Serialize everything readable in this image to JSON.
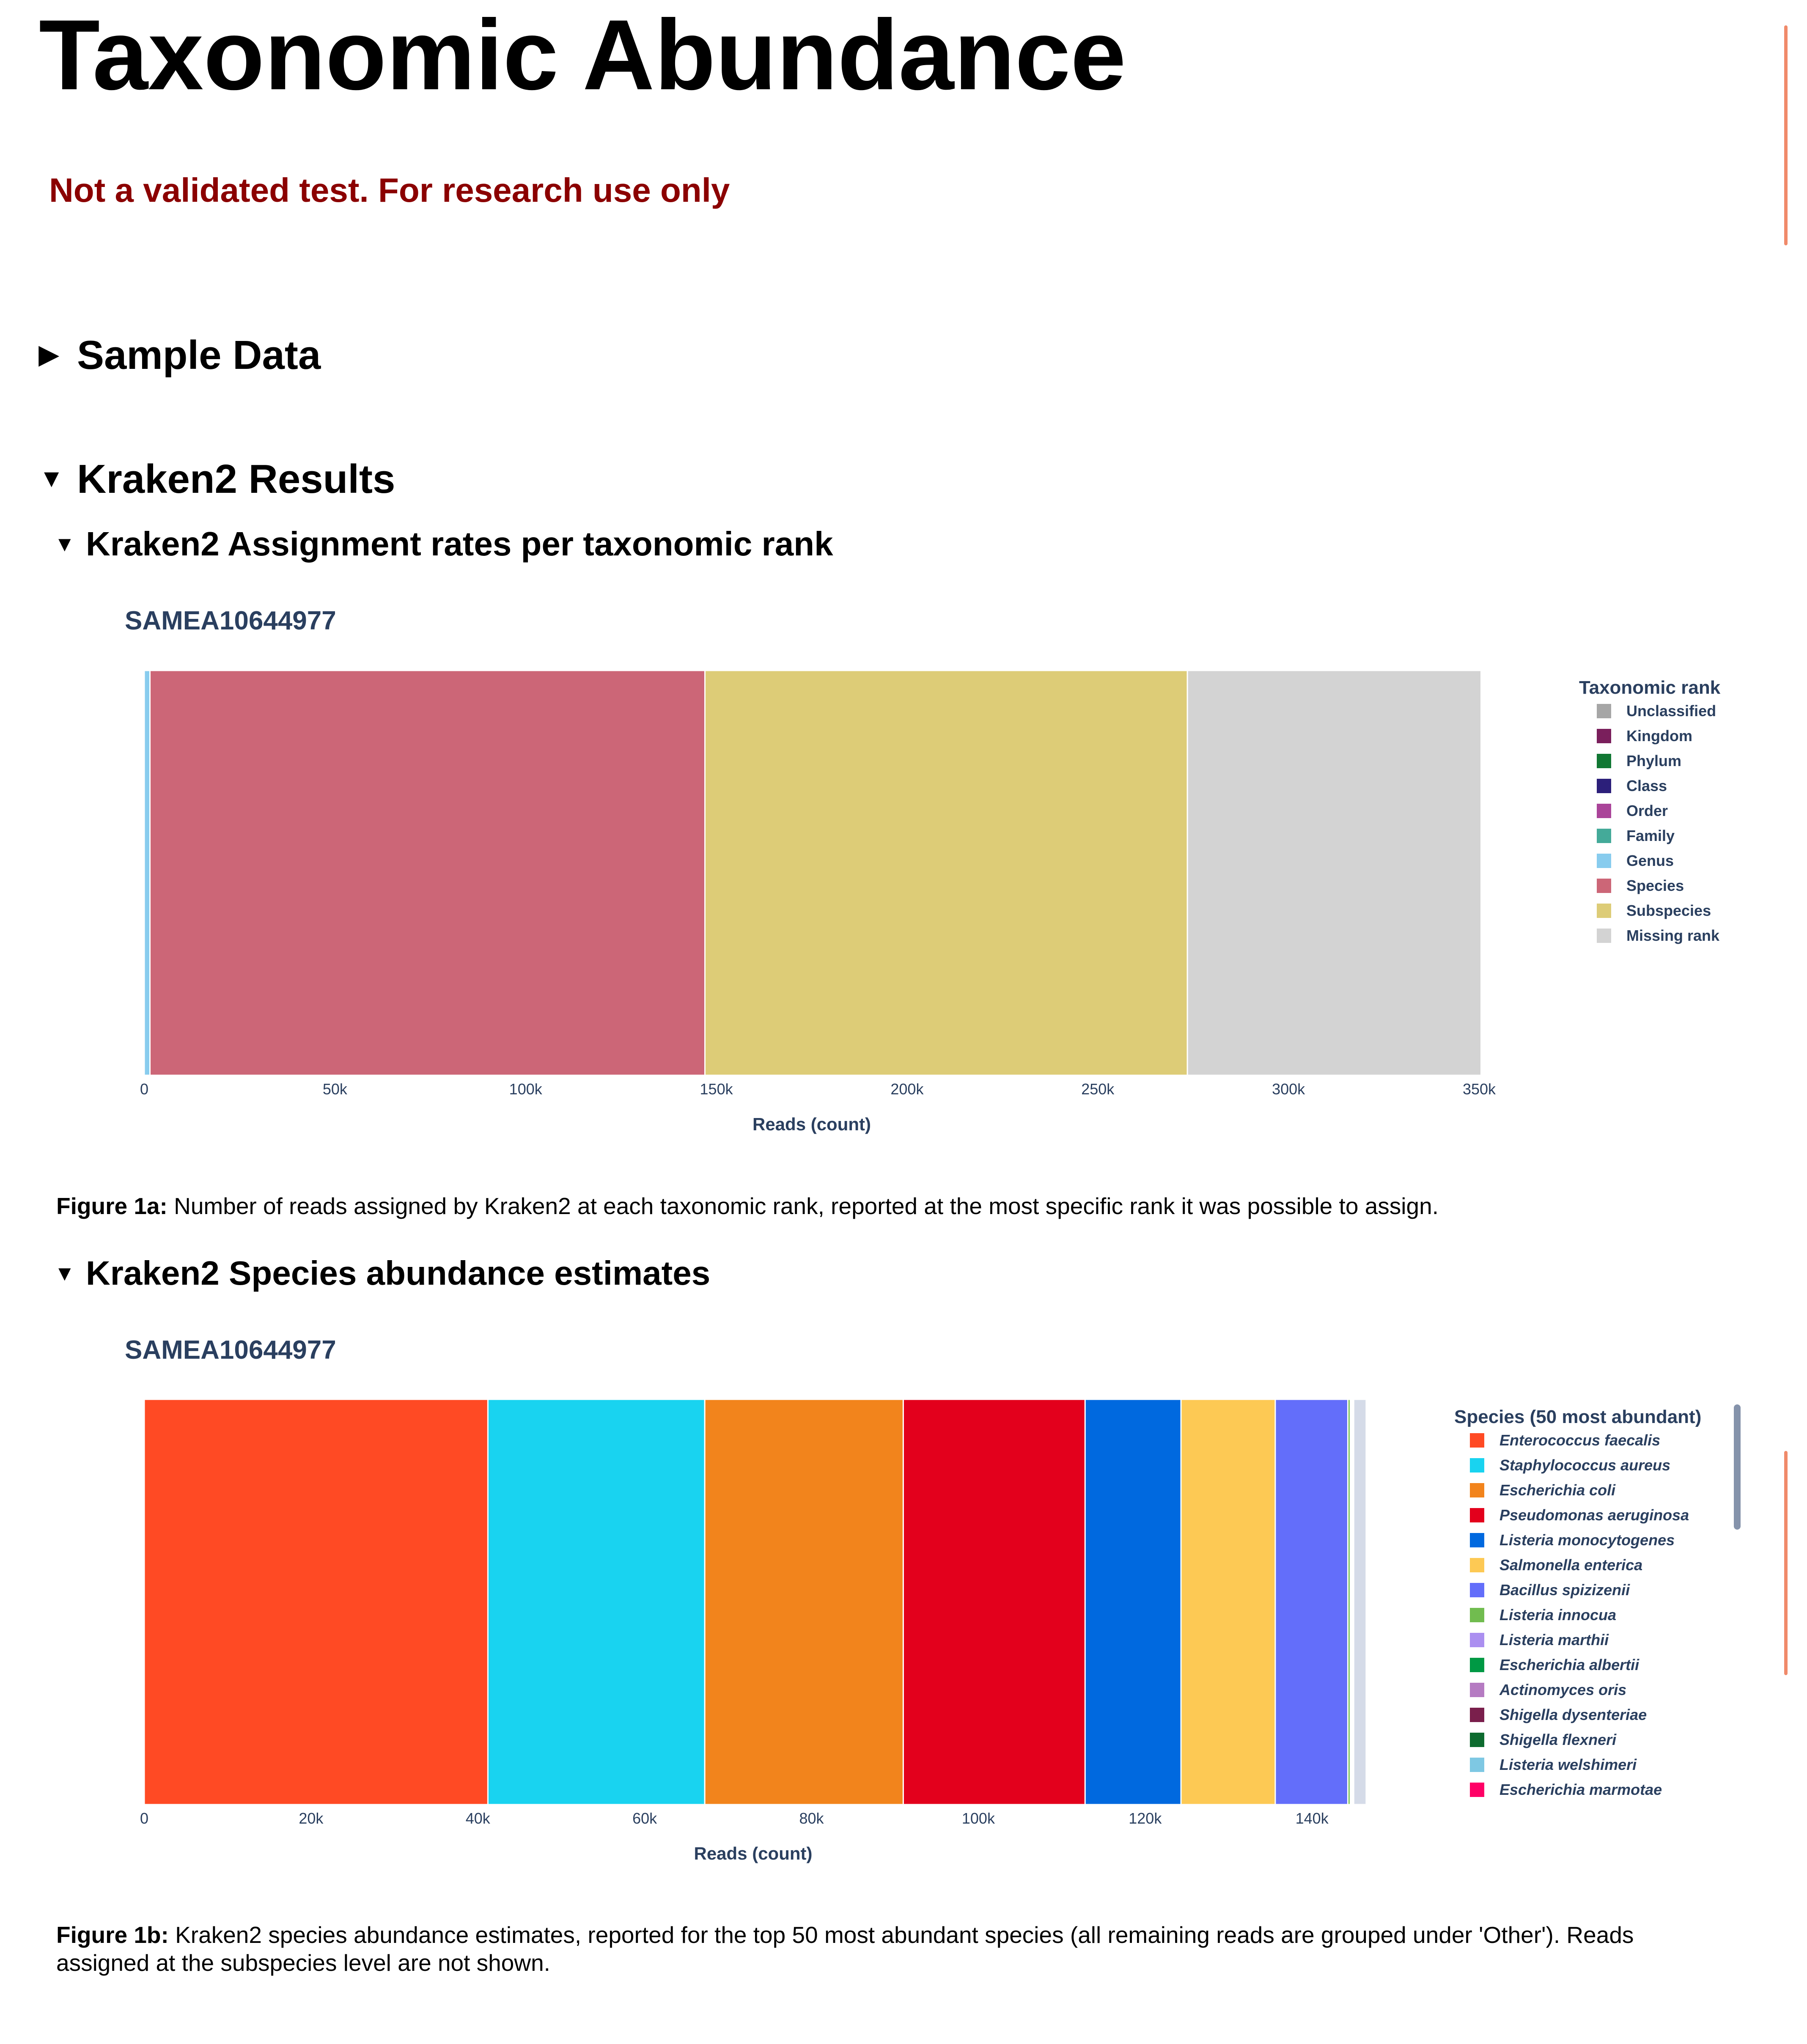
{
  "page": {
    "title": "Taxonomic Abundance",
    "warning": "Not a validated test. For research use only",
    "sections": {
      "sample_data": "Sample Data",
      "kraken_results": "Kraken2 Results",
      "rank_rates": "Kraken2 Assignment rates per taxonomic rank",
      "species_abundance": "Kraken2 Species abundance estimates"
    },
    "icons": {
      "collapsed": "▶",
      "expanded": "▼"
    },
    "figure1a": {
      "label": "Figure 1a:",
      "caption": " Number of reads assigned by Kraken2 at each taxonomic rank, reported at the most specific rank it was possible to assign."
    },
    "figure1b": {
      "label": "Figure 1b:",
      "caption": " Kraken2 species abundance estimates, reported for the top 50 most abundant species (all remaining reads are grouped under 'Other'). Reads assigned at the subspecies level are not shown."
    }
  },
  "chart_data": [
    {
      "type": "bar",
      "orientation": "horizontal-stacked",
      "title": "SAMEA10644977",
      "xlabel": "Reads (count)",
      "xlim": [
        0,
        350000
      ],
      "xticks": [
        0,
        50000,
        100000,
        150000,
        200000,
        250000,
        300000,
        350000
      ],
      "xtick_labels": [
        "0",
        "50k",
        "100k",
        "150k",
        "200k",
        "250k",
        "300k",
        "350k"
      ],
      "legend_title": "Taxonomic rank",
      "legend_position": "right",
      "series": [
        {
          "name": "Unclassified",
          "value": 0,
          "color": "#a6a6a6"
        },
        {
          "name": "Kingdom",
          "value": 0,
          "color": "#7a1f5c"
        },
        {
          "name": "Phylum",
          "value": 0,
          "color": "#117733"
        },
        {
          "name": "Class",
          "value": 0,
          "color": "#2c1f7a"
        },
        {
          "name": "Order",
          "value": 0,
          "color": "#aa4499"
        },
        {
          "name": "Family",
          "value": 0,
          "color": "#44aa99"
        },
        {
          "name": "Genus",
          "value": 1500,
          "color": "#88ccee"
        },
        {
          "name": "Species",
          "value": 145500,
          "color": "#cc6677"
        },
        {
          "name": "Subspecies",
          "value": 126500,
          "color": "#ddcc77"
        },
        {
          "name": "Missing rank",
          "value": 77000,
          "color": "#d3d3d3"
        }
      ]
    },
    {
      "type": "bar",
      "orientation": "horizontal-stacked",
      "title": "SAMEA10644977",
      "xlabel": "Reads (count)",
      "xlim": [
        0,
        146000
      ],
      "xticks": [
        0,
        20000,
        40000,
        60000,
        80000,
        100000,
        120000,
        140000
      ],
      "xtick_labels": [
        "0",
        "20k",
        "40k",
        "60k",
        "80k",
        "100k",
        "120k",
        "140k"
      ],
      "legend_title": "Species (50 most abundant)",
      "legend_position": "right",
      "series": [
        {
          "name": "Enterococcus faecalis",
          "value": 41200,
          "color": "#ff4a24"
        },
        {
          "name": "Staphylococcus aureus",
          "value": 26000,
          "color": "#19d3f0"
        },
        {
          "name": "Escherichia coli",
          "value": 23800,
          "color": "#f2841c"
        },
        {
          "name": "Pseudomonas aeruginosa",
          "value": 21800,
          "color": "#e3001c"
        },
        {
          "name": "Listeria monocytogenes",
          "value": 11500,
          "color": "#0069df"
        },
        {
          "name": "Salmonella enterica",
          "value": 11300,
          "color": "#fdc954"
        },
        {
          "name": "Bacillus spizizenii",
          "value": 8700,
          "color": "#636efa"
        },
        {
          "name": "Listeria innocua",
          "value": 300,
          "color": "#71bc4f"
        },
        {
          "name": "Listeria marthii",
          "value": 100,
          "color": "#ab8ff0"
        },
        {
          "name": "Escherichia albertii",
          "value": 50,
          "color": "#009944"
        },
        {
          "name": "Actinomyces oris",
          "value": 50,
          "color": "#b57bc2"
        },
        {
          "name": "Shigella dysenteriae",
          "value": 50,
          "color": "#7a1f4c"
        },
        {
          "name": "Shigella flexneri",
          "value": 50,
          "color": "#0d6b2f"
        },
        {
          "name": "Listeria welshimeri",
          "value": 50,
          "color": "#7ec8e3"
        },
        {
          "name": "Escherichia marmotae",
          "value": 50,
          "color": "#ff0066"
        },
        {
          "name": "",
          "value": 1500,
          "color": "#d5dbe8"
        }
      ]
    }
  ]
}
